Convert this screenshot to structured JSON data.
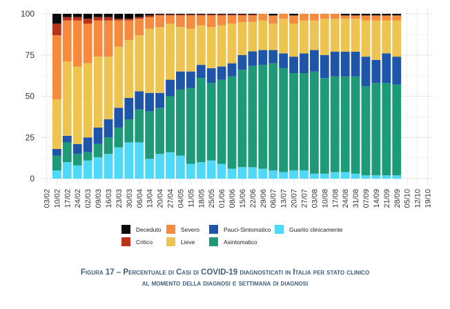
{
  "chart_data": {
    "type": "bar",
    "stacked": true,
    "percent": true,
    "title": "",
    "xlabel": "",
    "ylabel": "",
    "ylim": [
      0,
      100
    ],
    "yticks": [
      0,
      25,
      50,
      75,
      100
    ],
    "grid": true,
    "legend_position": "bottom",
    "categories": [
      "03/02",
      "10/02",
      "17/02",
      "24/02",
      "02/03",
      "09/03",
      "16/03",
      "23/03",
      "30/03",
      "06/04",
      "13/04",
      "20/04",
      "27/04",
      "04/05",
      "11/05",
      "18/05",
      "25/05",
      "01/06",
      "08/06",
      "15/06",
      "22/06",
      "29/06",
      "06/07",
      "13/07",
      "20/07",
      "27/07",
      "03/08",
      "10/08",
      "17/08",
      "24/08",
      "31/08",
      "07/09",
      "14/09",
      "21/09",
      "28/09",
      "05/10",
      "12/10",
      "19/10"
    ],
    "series": [
      {
        "name": "Guarito clinicamente",
        "color": "#4fd8f7",
        "values": [
          null,
          5,
          10,
          8,
          11,
          13,
          15,
          19,
          22,
          22,
          12,
          15,
          16,
          14,
          9,
          10,
          11,
          9,
          6,
          7,
          7,
          6,
          5,
          4,
          5,
          5,
          3,
          3,
          4,
          4,
          3,
          2,
          2,
          2,
          2,
          null,
          null,
          null
        ]
      },
      {
        "name": "Asintomatico",
        "color": "#1f9a78",
        "values": [
          null,
          9,
          12,
          7,
          5,
          8,
          10,
          12,
          14,
          20,
          29,
          28,
          34,
          40,
          46,
          51,
          47,
          51,
          56,
          59,
          62,
          63,
          65,
          63,
          59,
          59,
          62,
          58,
          58,
          58,
          59,
          54,
          56,
          56,
          55,
          null,
          null,
          null
        ]
      },
      {
        "name": "Pauci-Sintomatico",
        "color": "#1f55a8",
        "values": [
          null,
          4,
          4,
          6,
          9,
          10,
          11,
          12,
          13,
          11,
          11,
          9,
          10,
          11,
          10,
          8,
          9,
          8,
          8,
          9,
          9,
          9,
          8,
          9,
          10,
          12,
          13,
          14,
          15,
          15,
          15,
          18,
          14,
          18,
          17,
          null,
          null,
          null
        ]
      },
      {
        "name": "Lieve",
        "color": "#ecc44f",
        "values": [
          null,
          30,
          45,
          47,
          45,
          43,
          38,
          37,
          35,
          34,
          39,
          40,
          34,
          27,
          26,
          24,
          25,
          25,
          24,
          20,
          18,
          18,
          16,
          21,
          20,
          20,
          18,
          22,
          20,
          20,
          20,
          22,
          24,
          20,
          22,
          null,
          null,
          null
        ]
      },
      {
        "name": "Severo",
        "color": "#f58b3e",
        "values": [
          null,
          39,
          25,
          28,
          24,
          22,
          22,
          16,
          12,
          10,
          7,
          7,
          5,
          7,
          8,
          6,
          7,
          6,
          5,
          4,
          4,
          4,
          5,
          3,
          5,
          4,
          4,
          3,
          3,
          2,
          2,
          3,
          3,
          3,
          3,
          null,
          null,
          null
        ]
      },
      {
        "name": "Critico",
        "color": "#b9321a",
        "values": [
          null,
          7,
          2,
          2,
          3,
          2,
          2,
          1,
          1,
          1,
          1,
          0.5,
          0.5,
          0.5,
          0.5,
          0.5,
          0.5,
          0.5,
          0.5,
          0.5,
          0.5,
          0,
          0,
          0,
          0,
          0,
          0,
          0,
          0,
          0,
          0,
          0,
          0,
          0,
          0,
          null,
          null,
          null
        ]
      },
      {
        "name": "Deceduto",
        "color": "#0a0a0a",
        "values": [
          null,
          6,
          2,
          2,
          3,
          2,
          2,
          3,
          3,
          2,
          1,
          0.5,
          0.5,
          0.5,
          0.5,
          0.5,
          0.5,
          0.5,
          0.5,
          0.5,
          0.5,
          0,
          1,
          0,
          1,
          0,
          0,
          0,
          0,
          1,
          1,
          1,
          1,
          1,
          1,
          null,
          null,
          null
        ]
      }
    ]
  },
  "legend": [
    {
      "name": "Deceduto",
      "color": "#0a0a0a"
    },
    {
      "name": "Severo",
      "color": "#f58b3e"
    },
    {
      "name": "Pauci-Sintomatico",
      "color": "#1f55a8"
    },
    {
      "name": "Guarito clinicamente",
      "color": "#4fd8f7"
    },
    {
      "name": "Critico",
      "color": "#b9321a"
    },
    {
      "name": "Lieve",
      "color": "#ecc44f"
    },
    {
      "name": "Asintomatico",
      "color": "#1f9a78"
    }
  ],
  "caption": {
    "prefix": "Figura 17 – Percentuale di Casi di ",
    "covid": "COVID-19",
    "line1_rest": " diagnosticati in Italia per stato clinico",
    "line2": "al momento della diagnosi e settimana di diagnosi"
  }
}
